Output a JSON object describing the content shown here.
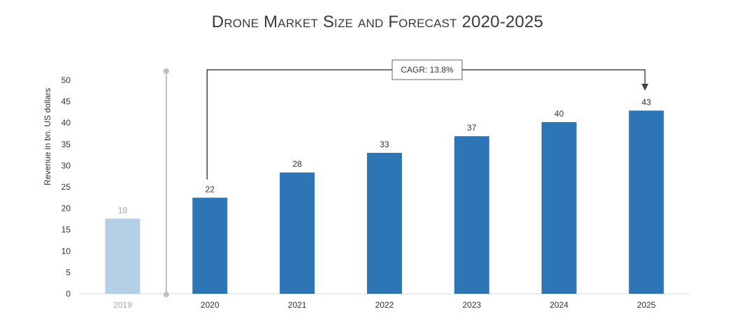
{
  "chart_data": {
    "type": "bar",
    "title": "Drone Market Size and Forecast 2020-2025",
    "xlabel": "",
    "ylabel": "Revenue in bn. US dollars",
    "ylim": [
      0,
      50
    ],
    "yticks": [
      0,
      5,
      10,
      15,
      20,
      25,
      30,
      35,
      40,
      45,
      50
    ],
    "categories": [
      "2019",
      "2020",
      "2021",
      "2022",
      "2023",
      "2024",
      "2025"
    ],
    "values": [
      17.6,
      22.5,
      28.4,
      33.0,
      36.9,
      40.2,
      42.9
    ],
    "data_labels": [
      "18",
      "22",
      "28",
      "33",
      "37",
      "40",
      "43"
    ],
    "highlight": [
      false,
      true,
      true,
      true,
      true,
      true,
      true
    ],
    "annotation": {
      "text": "CAGR: 13.8%",
      "from": "2020",
      "to": "2025"
    },
    "grid": false,
    "colors": {
      "primary": "#2e75b6",
      "muted": "#b4cfe6",
      "muted_text": "#a6a6a6",
      "axis": "#d9d9d9",
      "divider": "#bfbfbf",
      "arrow": "#444444"
    }
  }
}
